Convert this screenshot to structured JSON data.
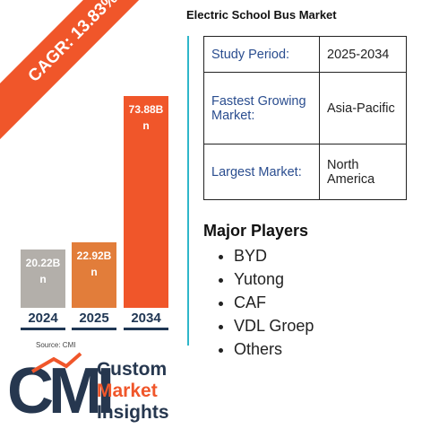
{
  "title": "Electric School Bus Market",
  "cagr": "CAGR: 13.83%",
  "chart_data": {
    "type": "bar",
    "categories": [
      "2024",
      "2025",
      "2034"
    ],
    "values": [
      20.22,
      22.92,
      73.88
    ],
    "value_labels": [
      "20.22Bn",
      "22.92Bn",
      "73.88Bn"
    ],
    "colors": [
      "#b3afaa",
      "#e27d3a",
      "#f0562a"
    ]
  },
  "source": "Source: CMI",
  "table": {
    "rows": [
      [
        "Study Period:",
        "2025-2034"
      ],
      [
        "Fastest Growing Market:",
        "Asia-Pacific"
      ],
      [
        "Largest Market:",
        "North America"
      ]
    ]
  },
  "players": {
    "title": "Major Players",
    "items": [
      "BYD",
      "Yutong",
      "CAF",
      "VDL Groep",
      "Others"
    ]
  },
  "logo": {
    "mark": "CMI",
    "lines": [
      "Custom",
      "Market",
      "Insights"
    ]
  }
}
